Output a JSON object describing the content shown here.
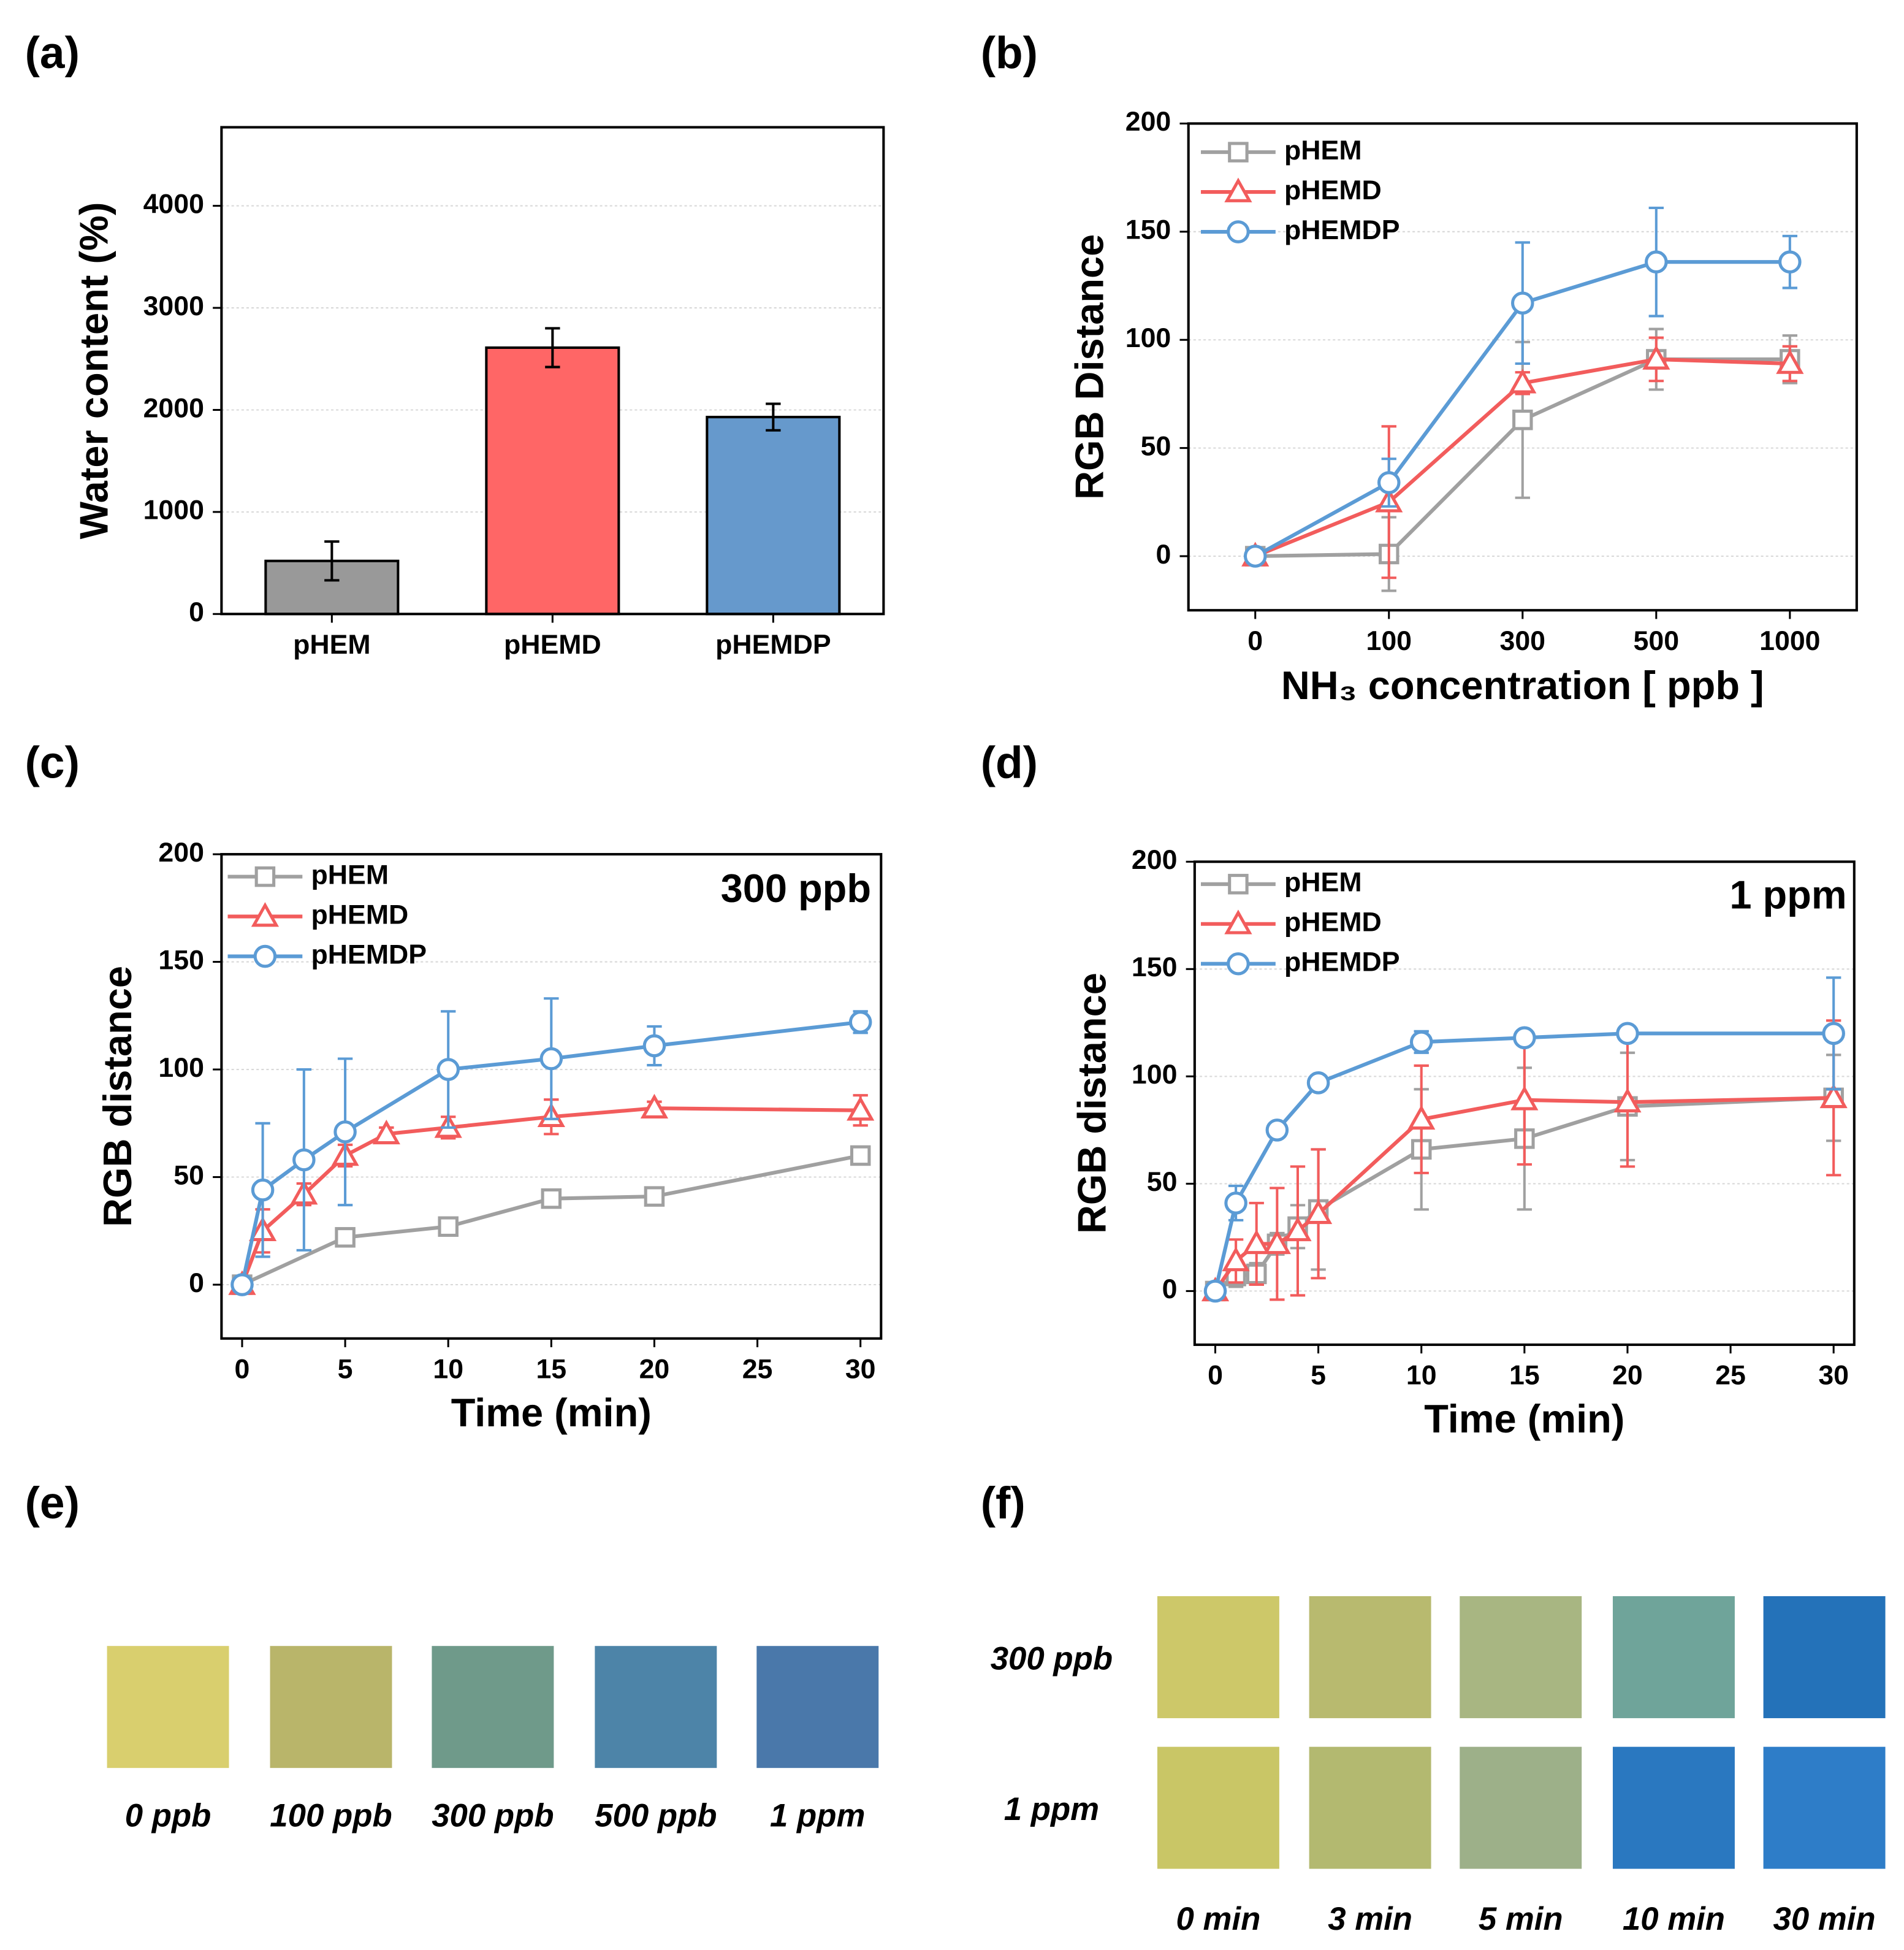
{
  "panel_labels": [
    "(a)",
    "(b)",
    "(c)",
    "(d)",
    "(e)",
    "(f)"
  ],
  "chart_data": [
    {
      "type": "bar",
      "ylabel": "Water content (%)",
      "categories": [
        "pHEM",
        "pHEMD",
        "pHEMDP"
      ],
      "values": [
        520,
        2610,
        1930
      ],
      "errors": [
        190,
        190,
        130
      ],
      "colors": [
        "#999999",
        "#ff6666",
        "#6699cc"
      ],
      "ylim": [
        0,
        4770
      ],
      "yticks": [
        0,
        1000,
        2000,
        3000,
        4000
      ],
      "grid": true
    },
    {
      "type": "line",
      "ylabel": "RGB Distance",
      "xlabel": "NH₃ concentration [ ppb ]",
      "categories": [
        "0",
        "100",
        "300",
        "500",
        "1000"
      ],
      "ylim": [
        -25,
        200
      ],
      "yticks": [
        0,
        50,
        100,
        150,
        200
      ],
      "grid": true,
      "legend": "upper left",
      "series": [
        {
          "name": "pHEM",
          "color": "#a0a0a0",
          "marker": "square",
          "values": [
            0,
            1,
            63,
            91,
            91
          ],
          "errors": [
            0,
            17,
            36,
            14,
            11
          ]
        },
        {
          "name": "pHEMD",
          "color": "#f25c5c",
          "marker": "triangle",
          "values": [
            0,
            25,
            80,
            91,
            89
          ],
          "errors": [
            0,
            35,
            5,
            10,
            8
          ]
        },
        {
          "name": "pHEMDP",
          "color": "#5b9bd5",
          "marker": "circle",
          "values": [
            0,
            34,
            117,
            136,
            136
          ],
          "errors": [
            0,
            11,
            28,
            25,
            12
          ]
        }
      ]
    },
    {
      "type": "line",
      "ylabel": "RGB distance",
      "xlabel": "Time (min)",
      "annotation": "300 ppb",
      "xlim": [
        -1,
        31
      ],
      "xticks": [
        0,
        5,
        10,
        15,
        20,
        25,
        30
      ],
      "ylim": [
        -25,
        200
      ],
      "yticks": [
        0,
        50,
        100,
        150,
        200
      ],
      "grid": true,
      "legend": "upper left",
      "series": [
        {
          "name": "pHEM",
          "color": "#a0a0a0",
          "marker": "square",
          "x": [
            0,
            5,
            10,
            15,
            20,
            30
          ],
          "values": [
            0,
            22,
            27,
            40,
            41,
            60
          ],
          "errors": [
            0,
            3,
            3,
            3,
            3,
            3
          ]
        },
        {
          "name": "pHEMD",
          "color": "#f25c5c",
          "marker": "triangle",
          "x": [
            0,
            1,
            3,
            5,
            7,
            10,
            15,
            20,
            30
          ],
          "values": [
            0,
            25,
            42,
            60,
            70,
            73,
            78,
            82,
            81
          ],
          "errors": [
            0,
            10,
            5,
            5,
            3,
            5,
            8,
            3,
            7
          ]
        },
        {
          "name": "pHEMDP",
          "color": "#5b9bd5",
          "marker": "circle",
          "x": [
            0,
            1,
            3,
            5,
            10,
            15,
            20,
            30
          ],
          "values": [
            0,
            44,
            58,
            71,
            100,
            105,
            111,
            122
          ],
          "errors": [
            0,
            31,
            42,
            34,
            27,
            28,
            9,
            5
          ]
        }
      ]
    },
    {
      "type": "line",
      "ylabel": "RGB distance",
      "xlabel": "Time (min)",
      "annotation": "1 ppm",
      "xlim": [
        -1,
        31
      ],
      "xticks": [
        0,
        5,
        10,
        15,
        20,
        25,
        30
      ],
      "ylim": [
        -25,
        200
      ],
      "yticks": [
        0,
        50,
        100,
        150,
        200
      ],
      "grid": true,
      "legend": "upper left",
      "series": [
        {
          "name": "pHEM",
          "color": "#a0a0a0",
          "marker": "square",
          "x": [
            0,
            1,
            2,
            3,
            4,
            5,
            10,
            15,
            20,
            30
          ],
          "values": [
            0,
            7,
            8,
            22,
            30,
            38,
            66,
            71,
            86,
            90
          ],
          "errors": [
            0,
            5,
            5,
            5,
            10,
            28,
            28,
            33,
            25,
            20
          ]
        },
        {
          "name": "pHEMD",
          "color": "#f25c5c",
          "marker": "triangle",
          "x": [
            0,
            1,
            2,
            3,
            4,
            5,
            10,
            15,
            20,
            30
          ],
          "values": [
            0,
            14,
            22,
            22,
            28,
            36,
            80,
            89,
            88,
            90
          ],
          "errors": [
            0,
            10,
            19,
            26,
            30,
            30,
            25,
            30,
            30,
            36
          ]
        },
        {
          "name": "pHEMDP",
          "color": "#5b9bd5",
          "marker": "circle",
          "x": [
            0,
            1,
            3,
            5,
            10,
            15,
            20,
            30
          ],
          "values": [
            0,
            41,
            75,
            97,
            116,
            118,
            120,
            120
          ],
          "errors": [
            0,
            8,
            3,
            3,
            5,
            3,
            3,
            26
          ]
        }
      ]
    }
  ],
  "swatches_e": {
    "labels": [
      "0 ppb",
      "100 ppb",
      "300 ppb",
      "500 ppb",
      "1 ppm"
    ],
    "colors": [
      "#d9cf6e",
      "#b9b56a",
      "#6f9a8a",
      "#4d84a8",
      "#4a78aa"
    ]
  },
  "swatches_f": {
    "rows": [
      "300 ppb",
      "1 ppm"
    ],
    "columns": [
      "0 min",
      "3 min",
      "5 min",
      "10 min",
      "30 min"
    ],
    "colors": [
      [
        "#cdc869",
        "#b8ba6f",
        "#a8b682",
        "#6fa49a",
        "#2472b9"
      ],
      [
        "#c9c666",
        "#b3b970",
        "#9db089",
        "#2a78c0",
        "#2e7dc8"
      ]
    ]
  }
}
